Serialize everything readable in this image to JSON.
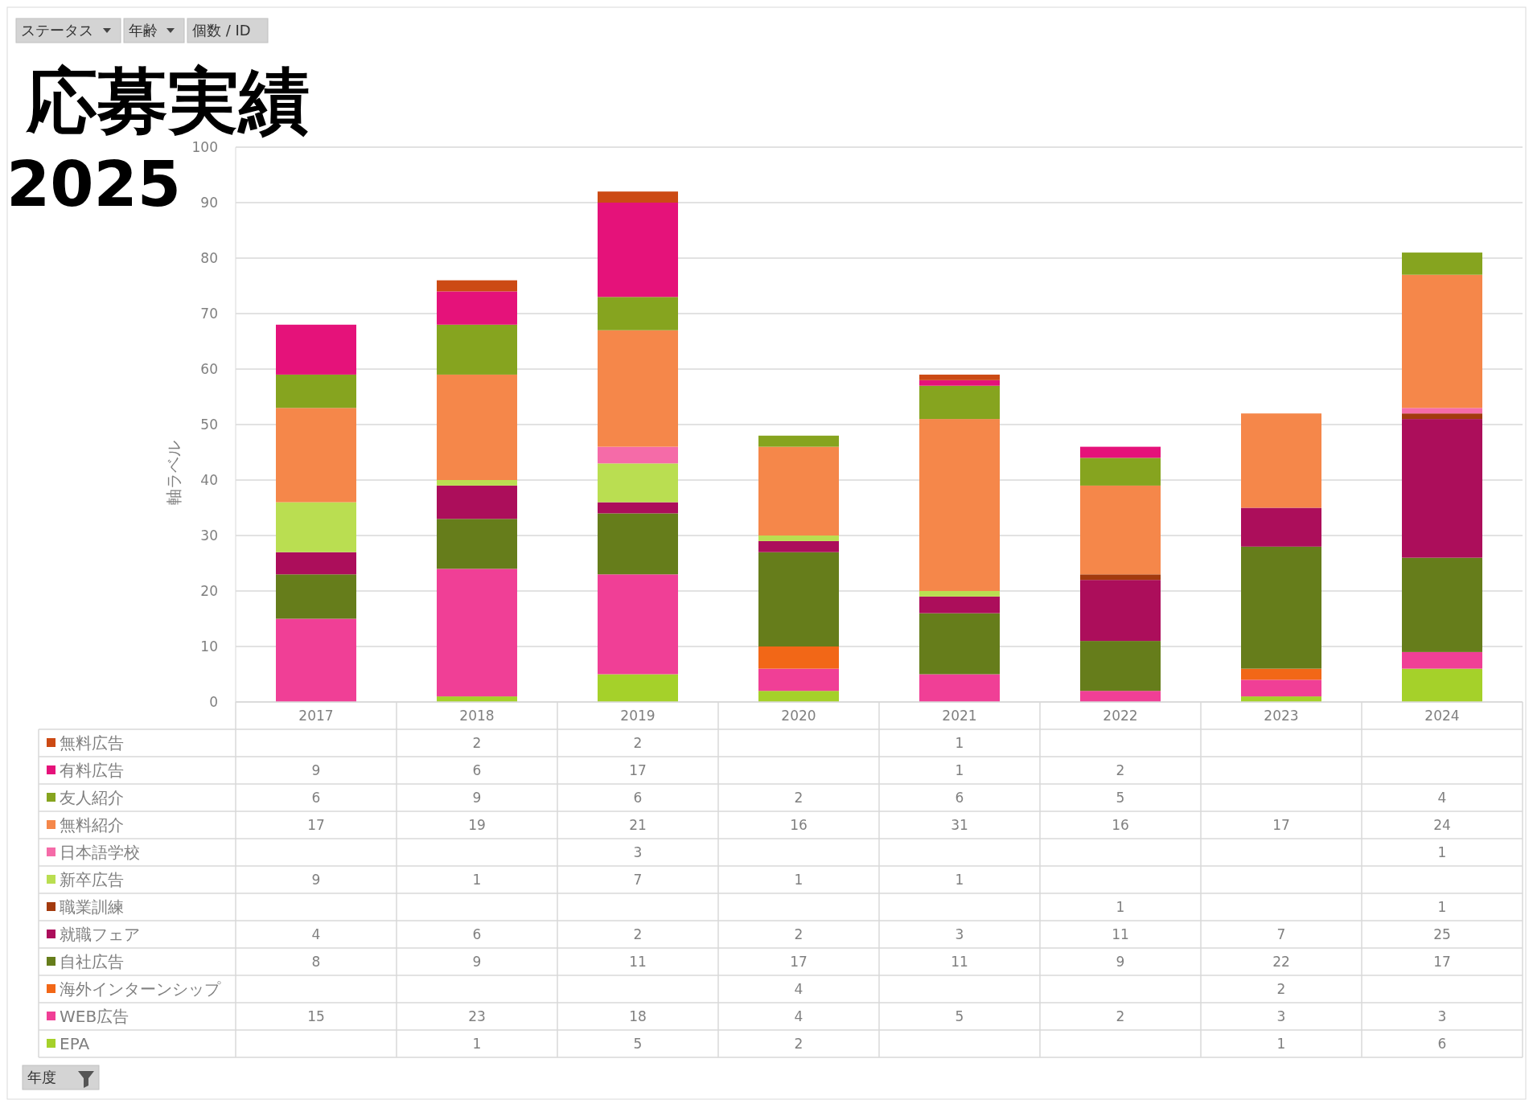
{
  "chart_data": {
    "type": "bar",
    "stacked": true,
    "title": "応募実績",
    "subtitle": "2025",
    "ylabel": "軸ラベル",
    "annotations": [
      "ステータス",
      "年齢",
      "個数 / ID",
      "年度"
    ],
    "categories": [
      "2017",
      "2018",
      "2019",
      "2020",
      "2021",
      "2022",
      "2023",
      "2024"
    ],
    "ylim": [
      0,
      100
    ],
    "yticks": [
      0,
      10,
      20,
      30,
      40,
      50,
      60,
      70,
      80,
      90,
      100
    ],
    "grid": "y",
    "legend": "bottom",
    "data_labels": true,
    "series": [
      {
        "name": "EPA",
        "color": "#a5d12a",
        "values": [
          null,
          1,
          5,
          2,
          null,
          null,
          1,
          6
        ]
      },
      {
        "name": "WEB広告",
        "color": "#f03f96",
        "values": [
          15,
          23,
          18,
          4,
          5,
          2,
          3,
          3
        ]
      },
      {
        "name": "海外インターンシップ",
        "color": "#f26717",
        "values": [
          null,
          null,
          null,
          4,
          null,
          null,
          2,
          null
        ]
      },
      {
        "name": "自社広告",
        "color": "#667d1b",
        "values": [
          8,
          9,
          11,
          17,
          11,
          9,
          22,
          17
        ]
      },
      {
        "name": "就職フェア",
        "color": "#ac0e5b",
        "values": [
          4,
          6,
          2,
          2,
          3,
          11,
          7,
          25
        ]
      },
      {
        "name": "職業訓練",
        "color": "#a33a0e",
        "values": [
          null,
          null,
          null,
          null,
          null,
          1,
          null,
          1
        ]
      },
      {
        "name": "新卒広告",
        "color": "#bade51",
        "values": [
          9,
          1,
          7,
          1,
          1,
          null,
          null,
          null
        ]
      },
      {
        "name": "日本語学校",
        "color": "#f56ba8",
        "values": [
          null,
          null,
          3,
          null,
          null,
          null,
          null,
          1
        ]
      },
      {
        "name": "無料紹介",
        "color": "#f5874a",
        "values": [
          17,
          19,
          21,
          16,
          31,
          16,
          17,
          24
        ]
      },
      {
        "name": "友人紹介",
        "color": "#86a41f",
        "values": [
          6,
          9,
          6,
          2,
          6,
          5,
          null,
          4
        ]
      },
      {
        "name": "有料広告",
        "color": "#e5127a",
        "values": [
          9,
          6,
          17,
          null,
          1,
          2,
          null,
          null
        ]
      },
      {
        "name": "無料広告",
        "color": "#cc4a14",
        "values": [
          null,
          2,
          2,
          null,
          1,
          null,
          null,
          null
        ]
      }
    ]
  }
}
